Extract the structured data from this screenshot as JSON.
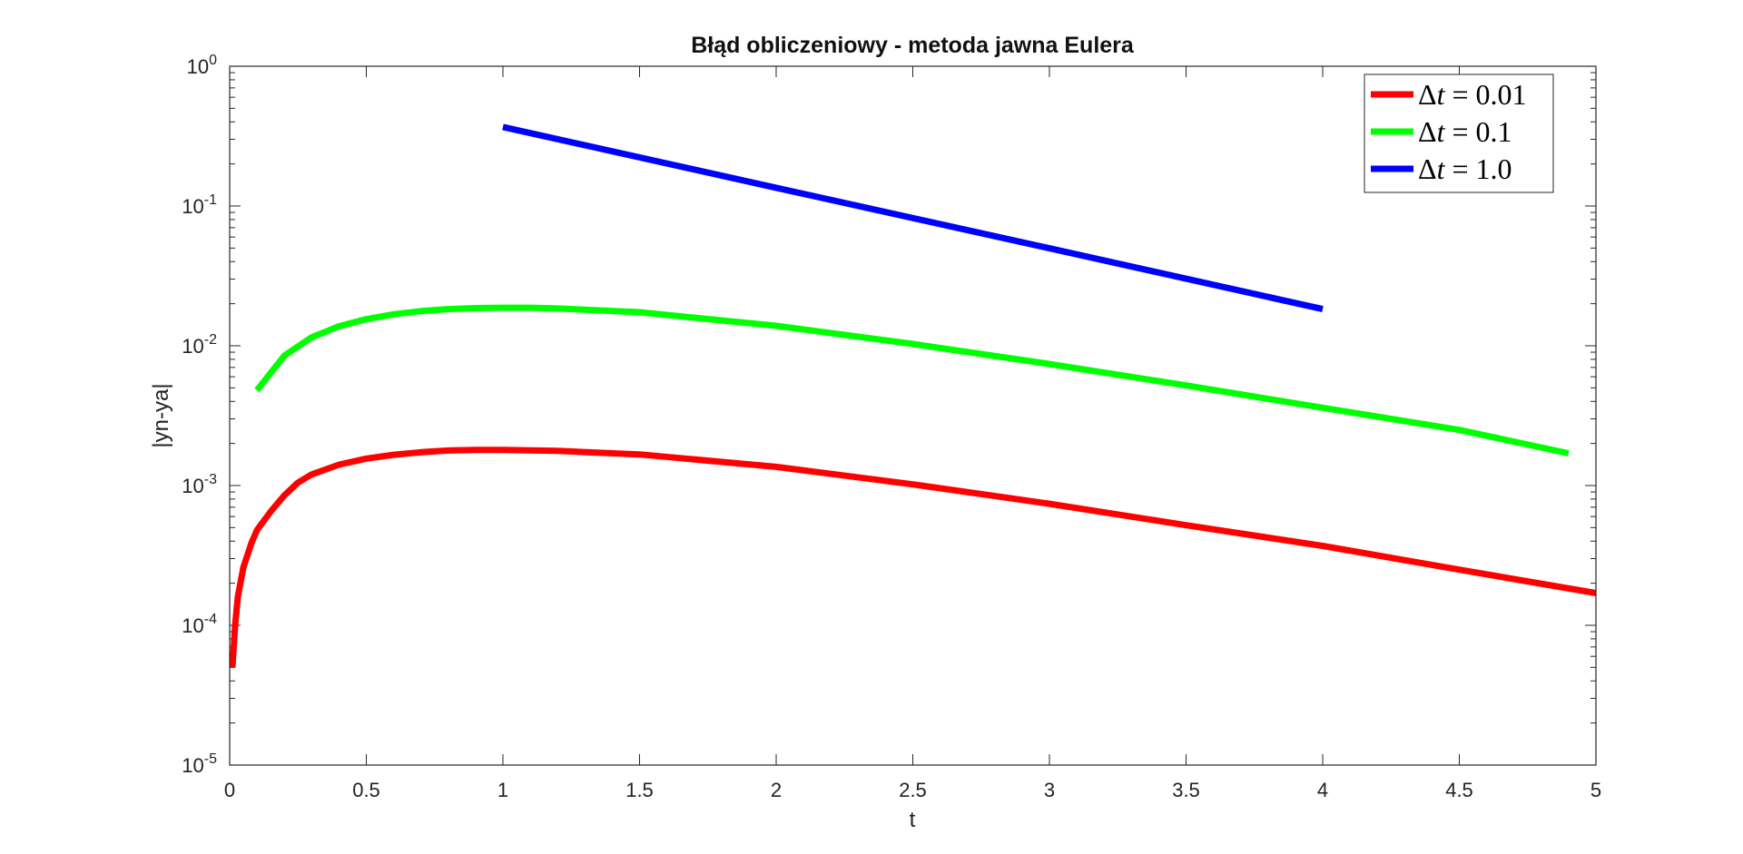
{
  "chart_data": {
    "type": "line",
    "title": "Błąd obliczeniowy - metoda jawna Eulera",
    "xlabel": "t",
    "ylabel": "|yn-ya|",
    "xlim": [
      0,
      5
    ],
    "ylim": [
      1e-05,
      1
    ],
    "yscale": "log",
    "grid": false,
    "box": true,
    "legend_position": "top-right",
    "x_ticks": [
      {
        "value": 0,
        "label": "0"
      },
      {
        "value": 0.5,
        "label": "0.5"
      },
      {
        "value": 1,
        "label": "1"
      },
      {
        "value": 1.5,
        "label": "1.5"
      },
      {
        "value": 2,
        "label": "2"
      },
      {
        "value": 2.5,
        "label": "2.5"
      },
      {
        "value": 3,
        "label": "3"
      },
      {
        "value": 3.5,
        "label": "3.5"
      },
      {
        "value": 4,
        "label": "4"
      },
      {
        "value": 4.5,
        "label": "4.5"
      },
      {
        "value": 5,
        "label": "5"
      }
    ],
    "y_ticks": [
      {
        "value": 1,
        "base": "10",
        "exp": "0"
      },
      {
        "value": 0.1,
        "base": "10",
        "exp": "-1"
      },
      {
        "value": 0.01,
        "base": "10",
        "exp": "-2"
      },
      {
        "value": 0.001,
        "base": "10",
        "exp": "-3"
      },
      {
        "value": 0.0001,
        "base": "10",
        "exp": "-4"
      },
      {
        "value": 1e-05,
        "base": "10",
        "exp": "-5"
      }
    ],
    "series": [
      {
        "name_prefix": "Δ",
        "name_var": "t",
        "name_rest": " = 0.01",
        "color": "#ff0000",
        "x": [
          0.01,
          0.02,
          0.03,
          0.05,
          0.08,
          0.1,
          0.15,
          0.2,
          0.25,
          0.3,
          0.4,
          0.5,
          0.6,
          0.7,
          0.8,
          0.9,
          1.0,
          1.2,
          1.5,
          2.0,
          2.5,
          3.0,
          3.5,
          4.0,
          4.5,
          5.0
        ],
        "y": [
          5e-05,
          0.0001,
          0.00016,
          0.00026,
          0.00039,
          0.00048,
          0.00065,
          0.00085,
          0.00105,
          0.0012,
          0.00141,
          0.00156,
          0.00166,
          0.00173,
          0.00178,
          0.0018,
          0.0018,
          0.00177,
          0.00167,
          0.00136,
          0.00102,
          0.00074,
          0.00052,
          0.00037,
          0.00025,
          0.00017
        ]
      },
      {
        "name_prefix": "Δ",
        "name_var": "t",
        "name_rest": " = 0.1",
        "color": "#00ff00",
        "x": [
          0.1,
          0.2,
          0.3,
          0.4,
          0.5,
          0.6,
          0.7,
          0.8,
          0.9,
          1.0,
          1.1,
          1.2,
          1.5,
          2.0,
          2.5,
          3.0,
          3.5,
          4.0,
          4.5,
          4.9
        ],
        "y": [
          0.0048,
          0.0085,
          0.0115,
          0.0138,
          0.0155,
          0.0168,
          0.0177,
          0.0183,
          0.0186,
          0.0187,
          0.0187,
          0.0185,
          0.0174,
          0.0139,
          0.0103,
          0.0074,
          0.0052,
          0.0036,
          0.0025,
          0.0017
        ]
      },
      {
        "name_prefix": "Δ",
        "name_var": "t",
        "name_rest": " = 1.0",
        "color": "#0000ff",
        "x": [
          1,
          2,
          3,
          4
        ],
        "y": [
          0.368,
          0.135,
          0.0498,
          0.0183
        ]
      }
    ]
  }
}
